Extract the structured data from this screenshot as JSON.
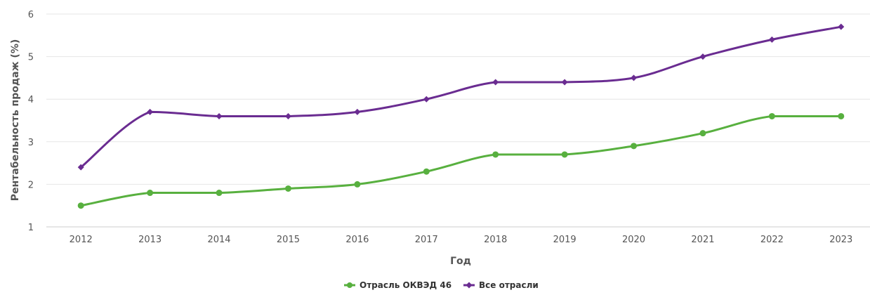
{
  "chart_data": {
    "type": "line",
    "title": "",
    "xlabel": "Год",
    "ylabel": "Рентабельность продаж (%)",
    "categories": [
      "2012",
      "2013",
      "2014",
      "2015",
      "2016",
      "2017",
      "2018",
      "2019",
      "2020",
      "2021",
      "2022",
      "2023"
    ],
    "ylim": [
      1,
      6
    ],
    "yticks": [
      1,
      2,
      3,
      4,
      5,
      6
    ],
    "grid": true,
    "legend": "bottom-center",
    "series": [
      {
        "name": "Отрасль ОКВЭД 46",
        "color": "#58b03f",
        "marker": "circle",
        "values": [
          1.5,
          1.8,
          1.8,
          1.9,
          2.0,
          2.3,
          2.7,
          2.7,
          2.9,
          3.2,
          3.6,
          3.6
        ]
      },
      {
        "name": "Все отрасли",
        "color": "#6a2c91",
        "marker": "diamond",
        "values": [
          2.4,
          3.7,
          3.6,
          3.6,
          3.7,
          4.0,
          4.4,
          4.4,
          4.5,
          5.0,
          5.4,
          5.7
        ]
      }
    ]
  }
}
